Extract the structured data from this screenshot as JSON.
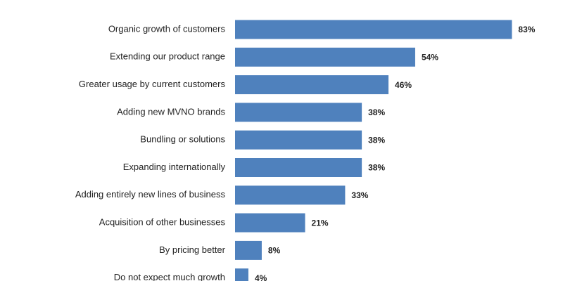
{
  "chart_data": {
    "type": "hbar",
    "categories": [
      "Organic growth of customers",
      "Extending our product range",
      "Greater usage by current customers",
      "Adding new MVNO brands",
      "Bundling or solutions",
      "Expanding internationally",
      "Adding entirely new lines of business",
      "Acquisition of other businesses",
      "By pricing better",
      "Do not expect much growth"
    ],
    "values": [
      83,
      54,
      46,
      38,
      38,
      38,
      33,
      21,
      8,
      4
    ],
    "value_labels": [
      "83%",
      "54%",
      "46%",
      "38%",
      "38%",
      "38%",
      "33%",
      "21%",
      "8%",
      "4%"
    ],
    "color": "#4f81bd",
    "xlim": [
      0,
      100
    ]
  }
}
